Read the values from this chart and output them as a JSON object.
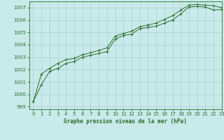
{
  "background_color": "#c8eaea",
  "grid_color": "#b0d4d4",
  "line_color": "#2d6e2d",
  "marker_color": "#2d6e2d",
  "title": "Graphe pression niveau de la mer (hPa)",
  "xlim": [
    -0.5,
    23
  ],
  "ylim": [
    998.8,
    1007.5
  ],
  "yticks": [
    999,
    1000,
    1001,
    1002,
    1003,
    1004,
    1005,
    1006,
    1007
  ],
  "xticks": [
    0,
    1,
    2,
    3,
    4,
    5,
    6,
    7,
    8,
    9,
    10,
    11,
    12,
    13,
    14,
    15,
    16,
    17,
    18,
    19,
    20,
    21,
    22,
    23
  ],
  "series1": {
    "x": [
      0,
      1,
      2,
      3,
      4,
      5,
      6,
      7,
      8,
      9,
      10,
      11,
      12,
      13,
      14,
      15,
      16,
      17,
      18,
      19,
      20,
      21,
      22,
      23
    ],
    "y": [
      999.4,
      1000.8,
      1001.85,
      1002.1,
      1002.5,
      1002.65,
      1003.0,
      1003.15,
      1003.3,
      1003.45,
      1004.45,
      1004.75,
      1004.85,
      1005.3,
      1005.4,
      1005.5,
      1005.75,
      1006.0,
      1006.5,
      1007.05,
      1007.1,
      1007.05,
      1006.8,
      1006.85
    ]
  },
  "series2": {
    "x": [
      0,
      1,
      2,
      3,
      4,
      5,
      6,
      7,
      8,
      9,
      10,
      11,
      12,
      13,
      14,
      15,
      16,
      17,
      18,
      19,
      20,
      21,
      22,
      23
    ],
    "y": [
      999.4,
      1001.65,
      1002.1,
      1002.5,
      1002.8,
      1002.9,
      1003.2,
      1003.35,
      1003.55,
      1003.75,
      1004.7,
      1004.9,
      1005.1,
      1005.45,
      1005.6,
      1005.75,
      1006.05,
      1006.35,
      1006.8,
      1007.2,
      1007.25,
      1007.2,
      1007.15,
      1007.0
    ]
  }
}
